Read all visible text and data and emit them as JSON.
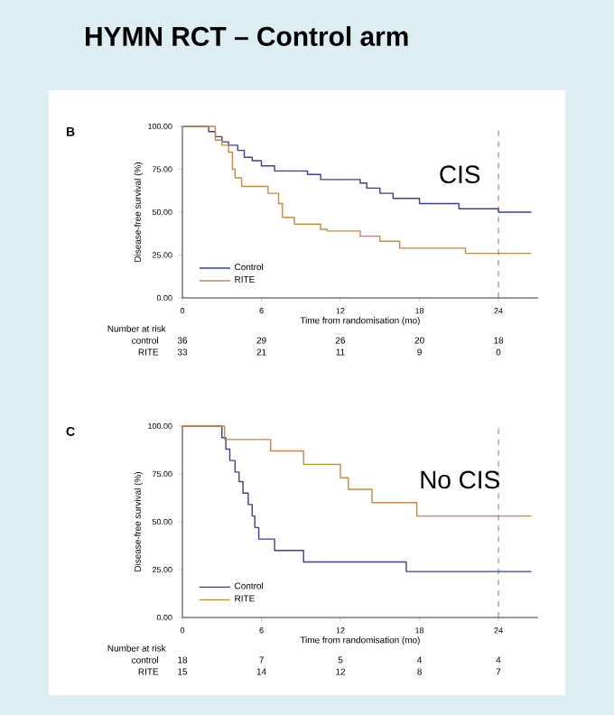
{
  "chart_data": [
    {
      "type": "step",
      "title": "HYMN RCT – Control arm",
      "xlabel": "Time from randomisation (mo)",
      "ylabel": "Disease-free survival (%)",
      "xlim": [
        0,
        27
      ],
      "ylim": [
        0,
        100
      ],
      "xticks": [
        0,
        6,
        12,
        18,
        24
      ],
      "yticks": [
        {
          "value": 0,
          "label": "0.00"
        },
        {
          "value": 25,
          "label": "25.00"
        },
        {
          "value": 50,
          "label": "50.00"
        },
        {
          "value": 75,
          "label": "75.00"
        },
        {
          "value": 100,
          "label": "100.00"
        }
      ],
      "legend": "bottom left",
      "grid": false,
      "ref_lines": [
        {
          "axis": "x",
          "value": 24,
          "line_style": "dashed",
          "color": "#555555"
        }
      ],
      "series": [
        {
          "name": "Control",
          "color": "#3a3f8f",
          "x": [
            0,
            1.8,
            2,
            2.5,
            3,
            3.5,
            4.2,
            4.7,
            5.3,
            6,
            7,
            9.5,
            10.5,
            13.5,
            14,
            15,
            16,
            18,
            21,
            24,
            26.5
          ],
          "values": [
            100,
            100,
            97,
            94,
            91,
            89,
            86,
            82,
            80,
            77,
            74,
            72,
            69,
            67,
            64,
            61,
            58,
            55,
            52,
            50,
            50
          ]
        },
        {
          "name": "RITE",
          "color": "#c8893f",
          "x": [
            0,
            2,
            2.5,
            3,
            3.5,
            3.8,
            4,
            4.5,
            6.5,
            7.3,
            7.6,
            8.5,
            10.5,
            11,
            13.5,
            15,
            16.5,
            21.5,
            26.5
          ],
          "values": [
            100,
            100,
            92,
            89,
            85,
            75,
            70,
            65,
            61,
            55,
            47,
            43,
            40,
            39,
            36,
            33,
            29,
            26,
            26
          ]
        }
      ],
      "annotations": [
        "B",
        "CIS",
        "Number at risk",
        "control",
        "36",
        "29",
        "26",
        "20",
        "18",
        "RITE",
        "33",
        "21",
        "11",
        "9",
        "0"
      ]
    },
    {
      "type": "step",
      "xlabel": "Time from randomisation (mo)",
      "ylabel": "Disease-free survival (%)",
      "xlim": [
        0,
        27
      ],
      "ylim": [
        0,
        100
      ],
      "xticks": [
        0,
        6,
        12,
        18,
        24
      ],
      "yticks": [
        {
          "value": 0,
          "label": "0.00"
        },
        {
          "value": 25,
          "label": "25.00"
        },
        {
          "value": 50,
          "label": "50.00"
        },
        {
          "value": 75,
          "label": "75.00"
        },
        {
          "value": 100,
          "label": "100.00"
        }
      ],
      "legend": "bottom left",
      "grid": false,
      "ref_lines": [
        {
          "axis": "x",
          "value": 24,
          "line_style": "dashed",
          "color": "#555555"
        }
      ],
      "series": [
        {
          "name": "Control",
          "color": "#3a3f8f",
          "x": [
            0,
            2.8,
            3,
            3.3,
            3.6,
            4,
            4.3,
            4.6,
            5,
            5.3,
            5.5,
            5.8,
            7,
            9.2,
            17,
            26.5
          ],
          "values": [
            100,
            100,
            94,
            88,
            82,
            76,
            71,
            65,
            59,
            53,
            47,
            41,
            35,
            29,
            24,
            24
          ]
        },
        {
          "name": "RITE",
          "color": "#c8893f",
          "x": [
            0,
            3,
            3.2,
            6.7,
            9.2,
            12,
            12.6,
            14.4,
            17.8,
            26.5
          ],
          "values": [
            100,
            100,
            93,
            87,
            80,
            73,
            67,
            60,
            53,
            53
          ]
        }
      ],
      "annotations": [
        "C",
        "No CIS",
        "Number at risk",
        "control",
        "18",
        "7",
        "5",
        "4",
        "4",
        "RITE",
        "15",
        "14",
        "12",
        "8",
        "7"
      ]
    }
  ]
}
